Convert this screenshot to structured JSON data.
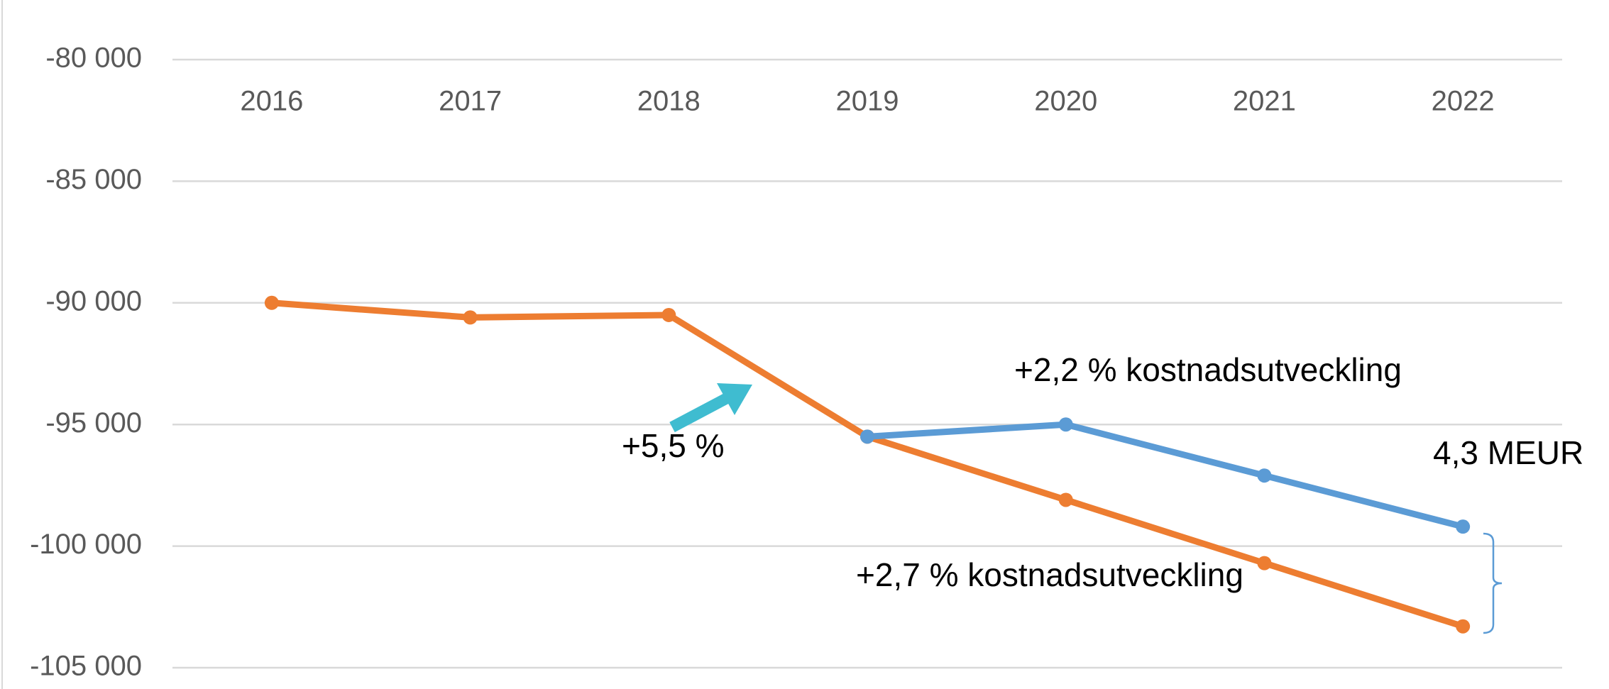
{
  "chart_data": {
    "type": "line",
    "categories": [
      "2016",
      "2017",
      "2018",
      "2019",
      "2020",
      "2021",
      "2022"
    ],
    "series": [
      {
        "name": "+2,7 % kostnadsutveckling",
        "color": "#ED7D31",
        "values": [
          -90000,
          -90600,
          -90500,
          -95500,
          -98100,
          -100700,
          -103300
        ]
      },
      {
        "name": "+2,2 % kostnadsutveckling",
        "color": "#5B9BD5",
        "values": [
          null,
          null,
          null,
          -95500,
          -95000,
          -97100,
          -99200
        ]
      }
    ],
    "ylim": [
      -80000,
      -105000
    ],
    "yticks": [
      {
        "value": -80000,
        "label": "-80 000"
      },
      {
        "value": -85000,
        "label": "-85 000"
      },
      {
        "value": -90000,
        "label": "-90 000"
      },
      {
        "value": -95000,
        "label": "-95 000"
      },
      {
        "value": -100000,
        "label": "-100 000"
      },
      {
        "value": -105000,
        "label": "-105 000"
      }
    ],
    "grid": true,
    "annotations": [
      "+5,5 %",
      "4,3 MEUR"
    ]
  }
}
